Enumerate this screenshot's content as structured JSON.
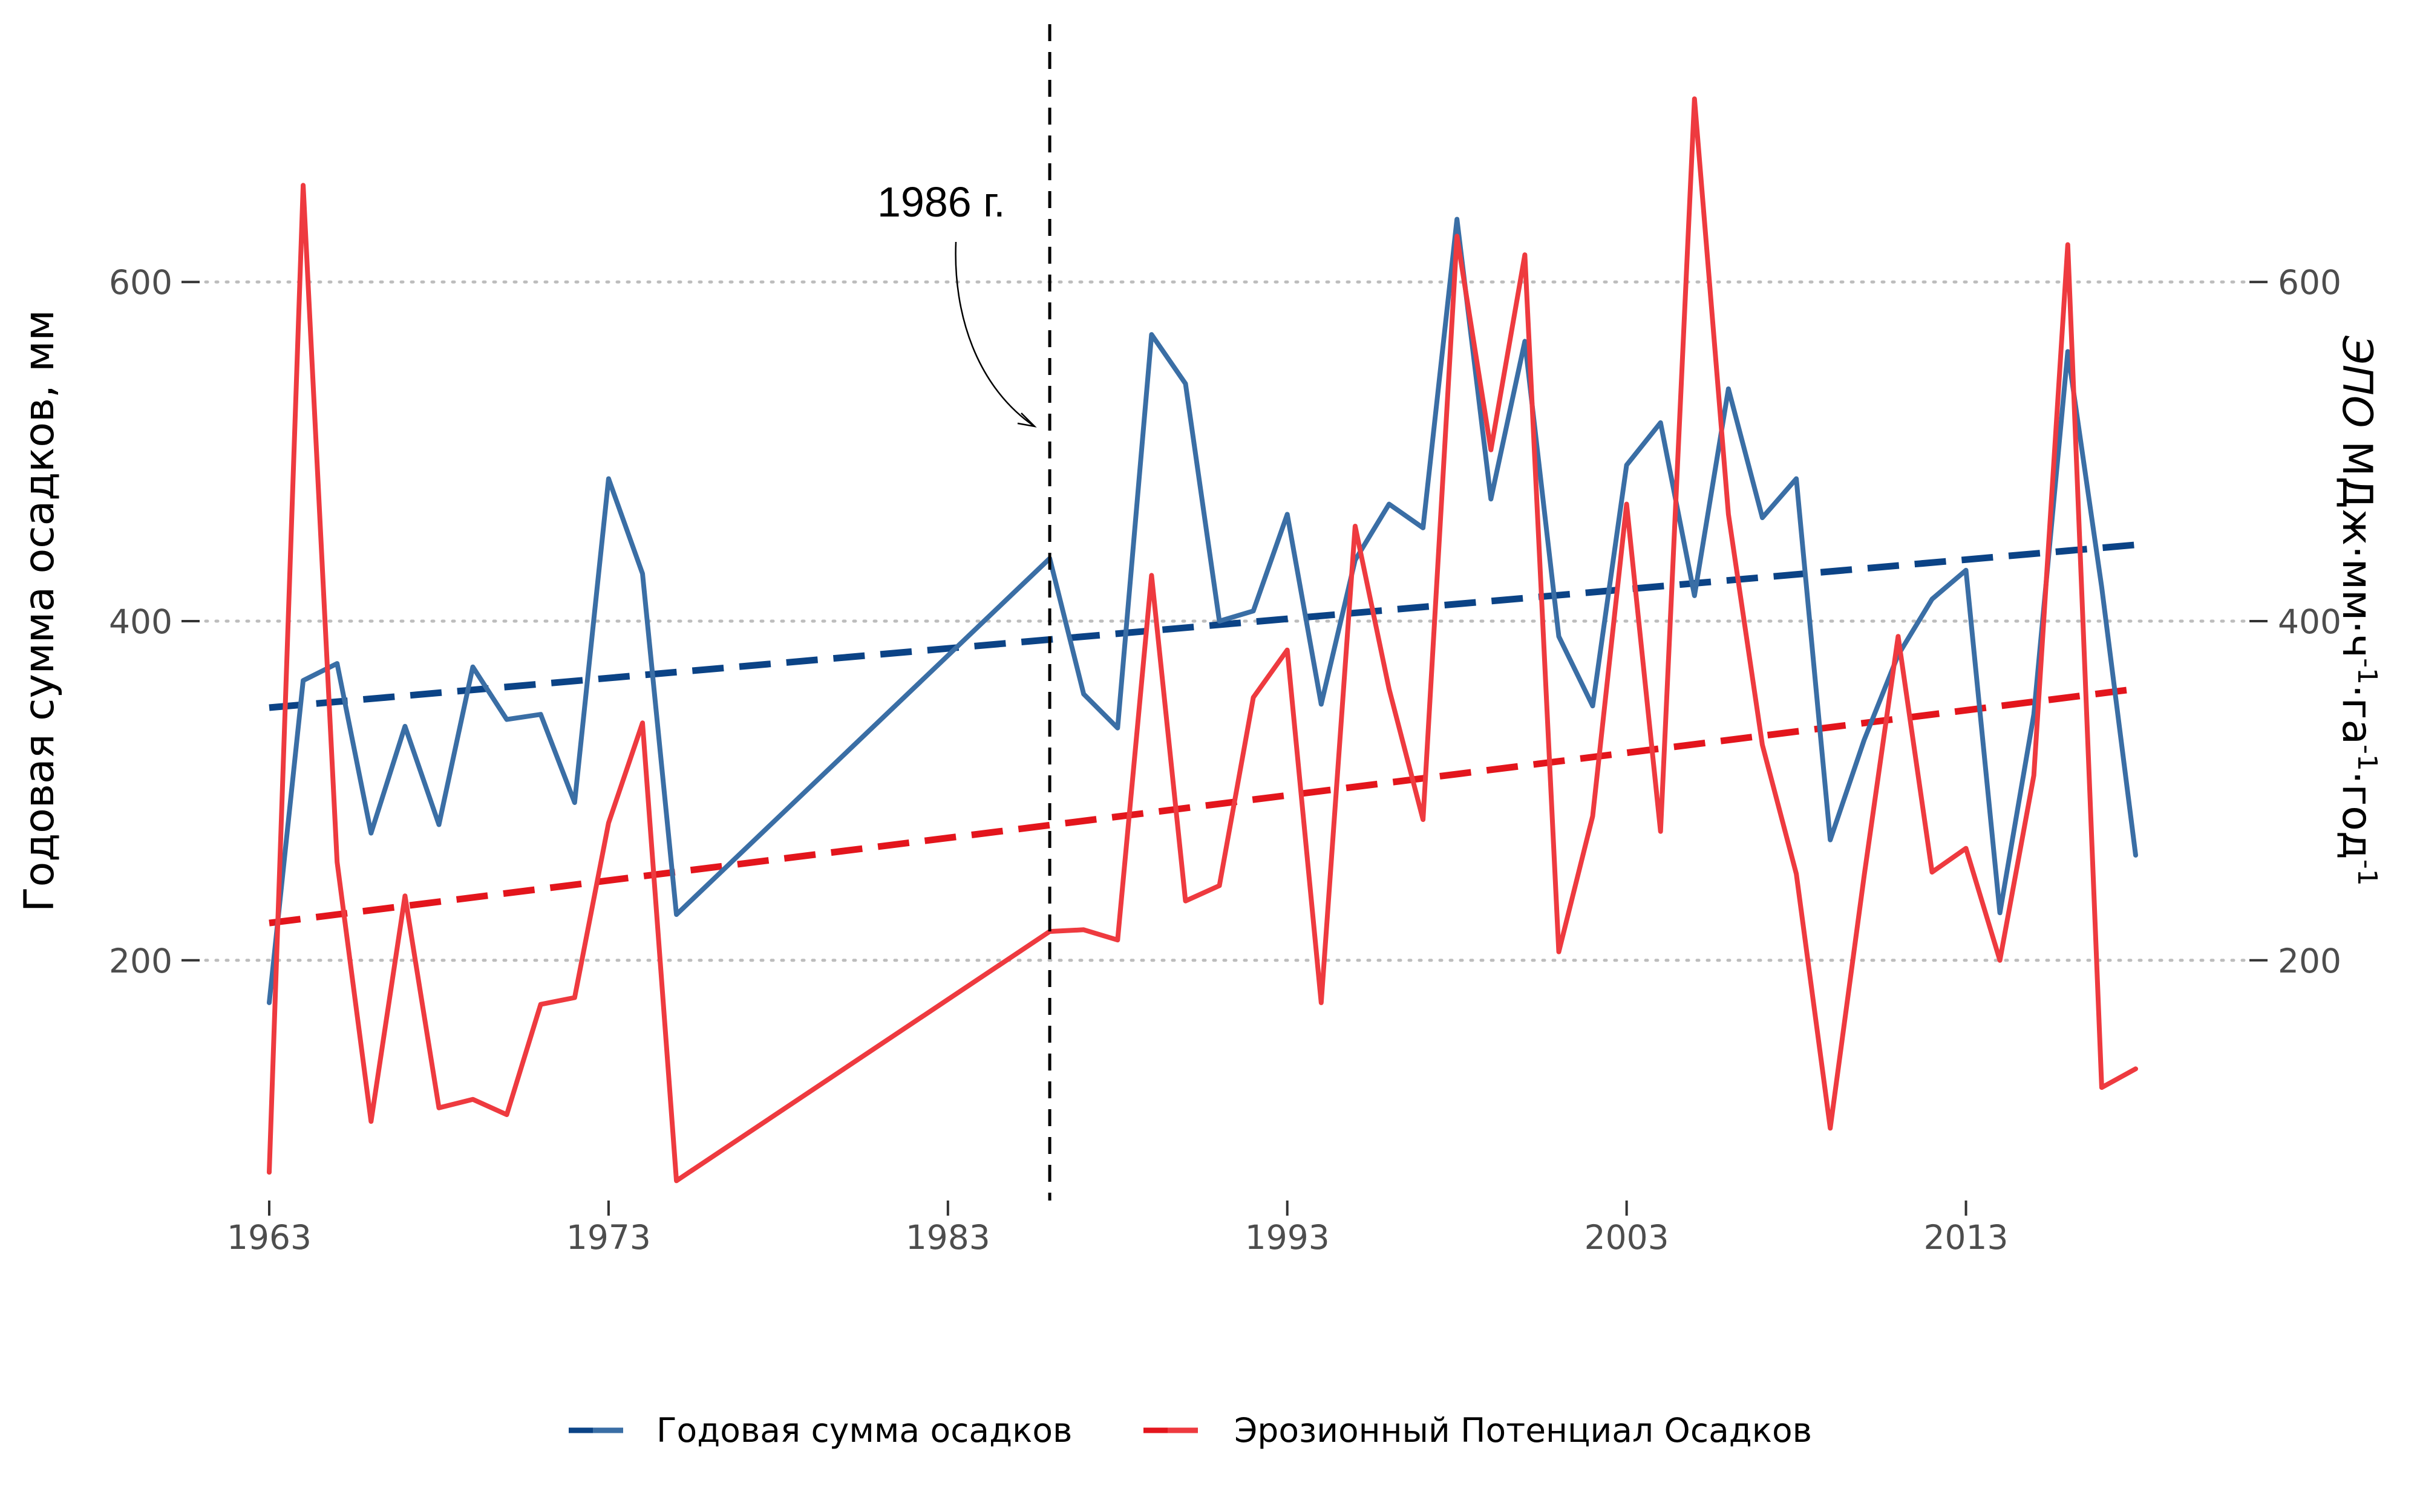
{
  "chart_data": {
    "type": "line",
    "x": [
      1963,
      1964,
      1965,
      1966,
      1967,
      1968,
      1969,
      1970,
      1971,
      1972,
      1973,
      1974,
      1975,
      1986,
      1987,
      1988,
      1989,
      1990,
      1991,
      1992,
      1993,
      1994,
      1995,
      1996,
      1997,
      1998,
      1999,
      2000,
      2001,
      2002,
      2003,
      2004,
      2005,
      2006,
      2007,
      2008,
      2009,
      2010,
      2011,
      2012,
      2013,
      2014,
      2015,
      2016,
      2017,
      2018
    ],
    "series": [
      {
        "name": "Годовая сумма осадков",
        "axis": "left",
        "color": "#3a6ea5",
        "values": [
          175,
          365,
          375,
          275,
          338,
          280,
          373,
          342,
          345,
          293,
          484,
          428,
          227,
          437,
          357,
          337,
          569,
          540,
          400,
          406,
          463,
          351,
          436,
          469,
          455,
          637,
          472,
          565,
          391,
          350,
          492,
          517,
          415,
          537,
          461,
          484,
          271,
          330,
          380,
          413,
          430,
          228,
          345,
          559,
          420,
          262
        ]
      },
      {
        "name": "Эрозионный Потенциал Осадков",
        "axis": "right",
        "color": "#ee3a3f",
        "values": [
          75,
          657,
          258,
          105,
          238,
          113,
          118,
          109,
          174,
          178,
          281,
          340,
          70,
          217,
          218,
          212,
          427,
          235,
          244,
          355,
          383,
          175,
          456,
          360,
          283,
          627,
          501,
          616,
          205,
          285,
          469,
          276,
          708,
          463,
          327,
          251,
          101,
          250,
          391,
          252,
          266,
          200,
          309,
          622,
          125,
          136
        ]
      }
    ],
    "trendlines": [
      {
        "series": "Годовая сумма осадков",
        "color": "#0b4386",
        "start": [
          1963,
          349
        ],
        "end": [
          2018,
          445
        ]
      },
      {
        "series": "Эрозионный Потенциал Осадков",
        "color": "#e3151c",
        "start": [
          1963,
          222
        ],
        "end": [
          2018,
          360
        ]
      }
    ],
    "xticks": [
      1963,
      1973,
      1983,
      1993,
      2003,
      2013
    ],
    "yticks_left": [
      200,
      400,
      600
    ],
    "yticks_right": [
      200,
      400,
      600
    ],
    "xlim": [
      1963,
      2018
    ],
    "ylim": [
      53,
      752
    ],
    "ylabel": "Годовая сумма осадков, мм",
    "ylabel_right": {
      "prefix": "ЭПО",
      "main": " МДж·мм·ч",
      "sup1": "-1",
      "mid": "·га",
      "sup2": "-1",
      "mid2": "·год",
      "sup3": "-1"
    },
    "vline": {
      "x": 1986,
      "label": "1986 г."
    },
    "grid": "horizontal-dotted",
    "legend_position": "bottom"
  }
}
